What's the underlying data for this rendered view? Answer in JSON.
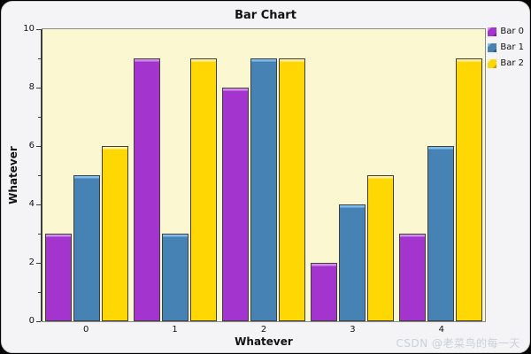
{
  "window": {
    "watermark": "CSDN @老菜鸟的每一天",
    "background": "#F4F4F6",
    "outer_background": "#000000"
  },
  "chart_data": {
    "type": "bar",
    "title": "Bar Chart",
    "xlabel": "Whatever",
    "ylabel": "Whatever",
    "categories": [
      "0",
      "1",
      "2",
      "3",
      "4"
    ],
    "series": [
      {
        "name": "Bar 0",
        "color": "#A434CE",
        "highlight": "#D28BEA",
        "dark": "#71219B",
        "values": [
          3,
          9,
          8,
          2,
          3
        ]
      },
      {
        "name": "Bar 1",
        "color": "#4682B4",
        "highlight": "#7FBCEE",
        "dark": "#2F5A7E",
        "values": [
          5,
          3,
          9,
          4,
          6
        ]
      },
      {
        "name": "Bar 2",
        "color": "#FFD703",
        "highlight": "#FFF0A0",
        "dark": "#BFA100",
        "values": [
          6,
          9,
          9,
          5,
          9
        ]
      }
    ],
    "ylim": [
      0,
      10
    ],
    "yticks_labeled": [
      0,
      2,
      4,
      6,
      8,
      10
    ],
    "ytick_minor_step": 1,
    "grid": false,
    "legend_position": "top-right",
    "plot_background": "#FBF7D0",
    "bar_outline": "#3f3f3f"
  }
}
